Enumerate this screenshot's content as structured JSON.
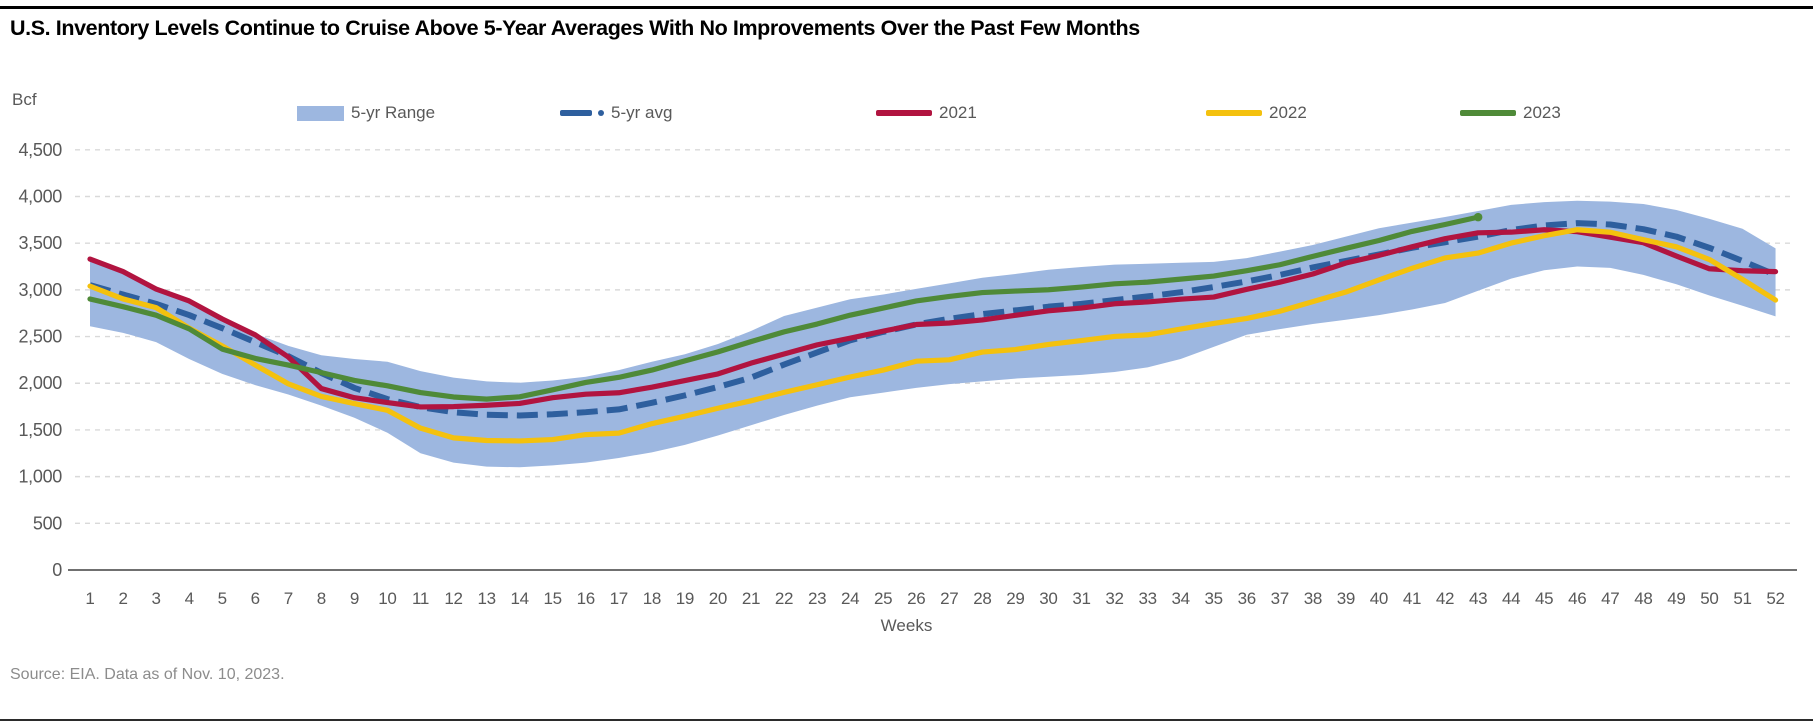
{
  "page": {
    "title": "U.S. Inventory Levels Continue to Cruise Above 5-Year Averages With No Improvements Over the Past Few Months",
    "unit_label": "Bcf",
    "x_axis_label": "Weeks",
    "source_note": "Source: EIA. Data as of Nov. 10, 2023."
  },
  "legend": {
    "items": [
      {
        "label": "5-yr Range",
        "type": "band",
        "color": "#9DB7E0"
      },
      {
        "label": "5-yr avg",
        "type": "dashdot",
        "color": "#2E5F9E"
      },
      {
        "label": "2021",
        "type": "line",
        "color": "#B11440"
      },
      {
        "label": "2022",
        "type": "line",
        "color": "#F4C10E"
      },
      {
        "label": "2023",
        "type": "line",
        "color": "#4F8A38"
      }
    ]
  },
  "chart_data": {
    "type": "line",
    "title": "U.S. Inventory Levels Continue to Cruise Above 5-Year Averages With No Improvements Over the Past Few Months",
    "xlabel": "Weeks",
    "ylabel": "Bcf",
    "ylim": [
      0,
      4500
    ],
    "grid": "horizontal-dashed",
    "legend_position": "top",
    "colors": {
      "band": "#9DB7E0",
      "avg": "#2E5F9E",
      "y2021": "#B11440",
      "y2022": "#F4C10E",
      "y2023": "#4F8A38",
      "grid": "#D9D9D9",
      "axis": "#404040",
      "tick_text": "#595959"
    },
    "y_ticks": [
      {
        "value": 0,
        "label": "0"
      },
      {
        "value": 500,
        "label": "500"
      },
      {
        "value": 1000,
        "label": "1,000"
      },
      {
        "value": 1500,
        "label": "1,500"
      },
      {
        "value": 2000,
        "label": "2,000"
      },
      {
        "value": 2500,
        "label": "2,500"
      },
      {
        "value": 3000,
        "label": "3,000"
      },
      {
        "value": 3500,
        "label": "3,500"
      },
      {
        "value": 4000,
        "label": "4,000"
      },
      {
        "value": 4500,
        "label": "4,500"
      }
    ],
    "x": [
      1,
      2,
      3,
      4,
      5,
      6,
      7,
      8,
      9,
      10,
      11,
      12,
      13,
      14,
      15,
      16,
      17,
      18,
      19,
      20,
      21,
      22,
      23,
      24,
      25,
      26,
      27,
      28,
      29,
      30,
      31,
      32,
      33,
      34,
      35,
      36,
      37,
      38,
      39,
      40,
      41,
      42,
      43,
      44,
      45,
      46,
      47,
      48,
      49,
      50,
      51,
      52
    ],
    "band": {
      "name": "5-yr Range",
      "upper": [
        3330,
        3200,
        3010,
        2885,
        2700,
        2530,
        2400,
        2300,
        2260,
        2230,
        2130,
        2060,
        2020,
        2005,
        2030,
        2070,
        2140,
        2230,
        2310,
        2420,
        2560,
        2720,
        2810,
        2900,
        2950,
        3010,
        3070,
        3130,
        3170,
        3215,
        3245,
        3270,
        3280,
        3290,
        3300,
        3340,
        3410,
        3480,
        3570,
        3660,
        3720,
        3780,
        3845,
        3910,
        3940,
        3955,
        3945,
        3920,
        3855,
        3760,
        3655,
        3445
      ],
      "lower": [
        2610,
        2540,
        2440,
        2260,
        2100,
        1980,
        1880,
        1760,
        1630,
        1470,
        1250,
        1150,
        1107,
        1100,
        1120,
        1150,
        1200,
        1260,
        1340,
        1440,
        1550,
        1660,
        1760,
        1850,
        1900,
        1950,
        1990,
        2020,
        2050,
        2070,
        2090,
        2120,
        2170,
        2260,
        2390,
        2520,
        2580,
        2635,
        2680,
        2730,
        2790,
        2860,
        2990,
        3120,
        3210,
        3250,
        3235,
        3160,
        3060,
        2940,
        2830,
        2716
      ]
    },
    "series": [
      {
        "name": "5-yr avg",
        "style": "dashed",
        "values": [
          3050,
          2950,
          2850,
          2730,
          2590,
          2440,
          2290,
          2110,
          1950,
          1830,
          1745,
          1690,
          1662,
          1655,
          1668,
          1690,
          1720,
          1790,
          1870,
          1960,
          2060,
          2200,
          2330,
          2460,
          2550,
          2630,
          2690,
          2740,
          2780,
          2820,
          2850,
          2890,
          2930,
          2975,
          3030,
          3090,
          3160,
          3240,
          3310,
          3380,
          3450,
          3510,
          3570,
          3640,
          3690,
          3715,
          3700,
          3650,
          3570,
          3450,
          3310,
          3160
        ]
      },
      {
        "name": "2021",
        "style": "solid",
        "values": [
          3330,
          3196,
          3009,
          2881,
          2689,
          2518,
          2281,
          1943,
          1845,
          1793,
          1746,
          1750,
          1764,
          1784,
          1845,
          1883,
          1898,
          1958,
          2029,
          2100,
          2215,
          2313,
          2411,
          2482,
          2558,
          2629,
          2645,
          2678,
          2727,
          2776,
          2805,
          2851,
          2871,
          2900,
          2923,
          3006,
          3082,
          3170,
          3288,
          3369,
          3461,
          3548,
          3611,
          3618,
          3644,
          3623,
          3564,
          3505,
          3362,
          3226,
          3205,
          3195
        ]
      },
      {
        "name": "2022",
        "style": "solid",
        "values": [
          3040,
          2903,
          2810,
          2591,
          2400,
          2195,
          1994,
          1859,
          1782,
          1710,
          1519,
          1415,
          1387,
          1382,
          1397,
          1450,
          1466,
          1567,
          1647,
          1732,
          1812,
          1902,
          1984,
          2067,
          2141,
          2236,
          2251,
          2334,
          2361,
          2416,
          2457,
          2501,
          2519,
          2580,
          2640,
          2694,
          2771,
          2874,
          2977,
          3106,
          3231,
          3342,
          3394,
          3501,
          3580,
          3644,
          3617,
          3537,
          3461,
          3325,
          3112,
          2891
        ]
      },
      {
        "name": "2023",
        "style": "solid",
        "end_dot": true,
        "values": [
          2902,
          2820,
          2729,
          2583,
          2366,
          2266,
          2195,
          2114,
          2030,
          1972,
          1900,
          1853,
          1830,
          1855,
          1930,
          2009,
          2063,
          2141,
          2240,
          2336,
          2446,
          2550,
          2634,
          2729,
          2805,
          2881,
          2930,
          2971,
          2987,
          3001,
          3030,
          3065,
          3083,
          3115,
          3148,
          3205,
          3269,
          3359,
          3445,
          3529,
          3626,
          3700,
          3779
        ]
      }
    ]
  }
}
